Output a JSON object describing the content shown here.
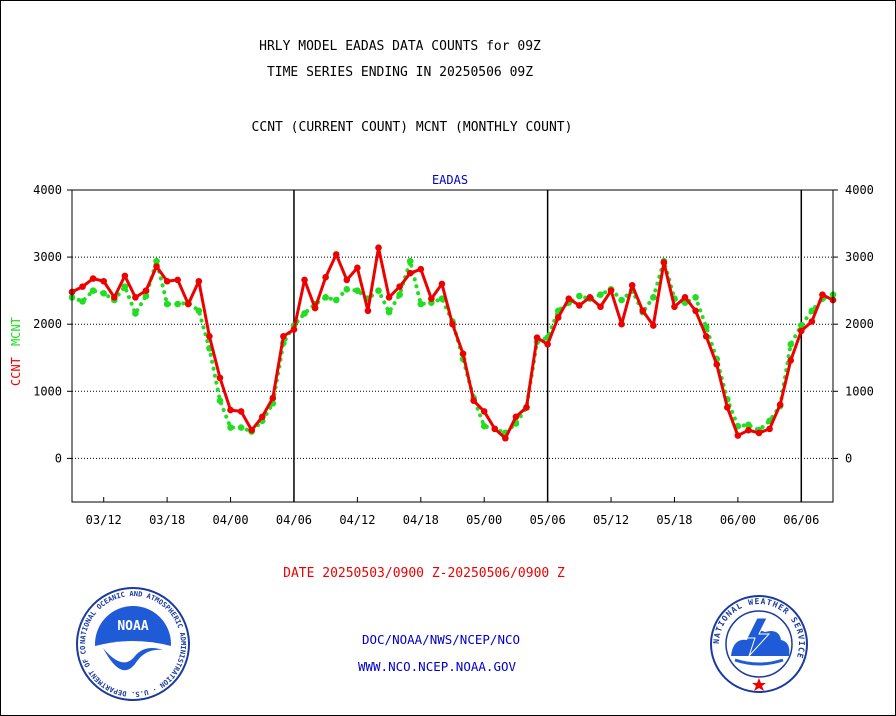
{
  "header": {
    "line1": "HRLY MODEL EADAS DATA COUNTS for 09Z",
    "line2": "TIME SERIES ENDING IN 20250506 09Z",
    "line3": "CCNT (CURRENT COUNT) MCNT (MONTHLY COUNT)"
  },
  "footer": {
    "date_range": "DATE 20250503/0900 Z-20250506/0900 Z",
    "org_path": "DOC/NOAA/NWS/NCEP/NCO",
    "website": "WWW.NCO.NCEP.NOAA.GOV",
    "noaa_logo_text": "NOAA",
    "noaa_seal_text": "NATIONAL OCEANIC AND ATMOSPHERIC ADMINISTRATION · U.S. DEPARTMENT OF COMMERCE",
    "nws_seal_text": "NATIONAL WEATHER SERVICE"
  },
  "colors": {
    "ccnt": "#ee0000",
    "mcnt": "#22dd22",
    "title_blue": "#0000cc",
    "date_red": "#ee0000",
    "grid": "#000000"
  },
  "chart_data": {
    "type": "line",
    "title": "EADAS",
    "ylabel_ccnt": "CCNT",
    "ylabel_mcnt": "MCNT",
    "ylim": [
      -650,
      4000
    ],
    "yticks": [
      0,
      1000,
      2000,
      3000,
      4000
    ],
    "gridlines": [
      0,
      1000,
      2000,
      3000
    ],
    "x_tick_labels": [
      "03/12",
      "03/18",
      "04/00",
      "04/06",
      "04/12",
      "04/18",
      "05/00",
      "05/06",
      "05/12",
      "05/18",
      "06/00",
      "06/06"
    ],
    "x_tick_hours": [
      3,
      9,
      15,
      21,
      27,
      33,
      39,
      45,
      51,
      57,
      63,
      69
    ],
    "day_boundaries_hours": [
      21,
      45,
      69
    ],
    "x_range_hours": [
      0,
      72
    ],
    "series": [
      {
        "name": "CCNT",
        "style": "solid",
        "values": [
          2480,
          2560,
          2680,
          2640,
          2400,
          2720,
          2400,
          2500,
          2860,
          2640,
          2660,
          2300,
          2640,
          1820,
          1200,
          720,
          700,
          420,
          620,
          900,
          1820,
          1920,
          2660,
          2240,
          2700,
          3040,
          2660,
          2840,
          2200,
          3140,
          2400,
          2560,
          2760,
          2820,
          2380,
          2600,
          2000,
          1560,
          860,
          700,
          440,
          300,
          620,
          760,
          1800,
          1700,
          2100,
          2380,
          2280,
          2400,
          2260,
          2500,
          2000,
          2580,
          2200,
          1980,
          2920,
          2260,
          2400,
          2200,
          1820,
          1400,
          760,
          340,
          420,
          380,
          440,
          800,
          1460,
          1900,
          2040,
          2440,
          2360
        ]
      },
      {
        "name": "MCNT",
        "style": "dotted",
        "values": [
          2400,
          2340,
          2500,
          2460,
          2360,
          2560,
          2160,
          2420,
          2940,
          2300,
          2300,
          2320,
          2200,
          1640,
          860,
          460,
          460,
          400,
          560,
          820,
          1720,
          1980,
          2160,
          2300,
          2400,
          2360,
          2520,
          2500,
          2380,
          2500,
          2180,
          2440,
          2940,
          2300,
          2320,
          2380,
          2040,
          1480,
          900,
          480,
          440,
          380,
          520,
          760,
          1740,
          1800,
          2200,
          2320,
          2420,
          2380,
          2440,
          2520,
          2360,
          2500,
          2180,
          2400,
          2940,
          2380,
          2320,
          2400,
          1960,
          1480,
          880,
          480,
          500,
          420,
          560,
          780,
          1700,
          1980,
          2200,
          2380,
          2440
        ]
      }
    ]
  }
}
